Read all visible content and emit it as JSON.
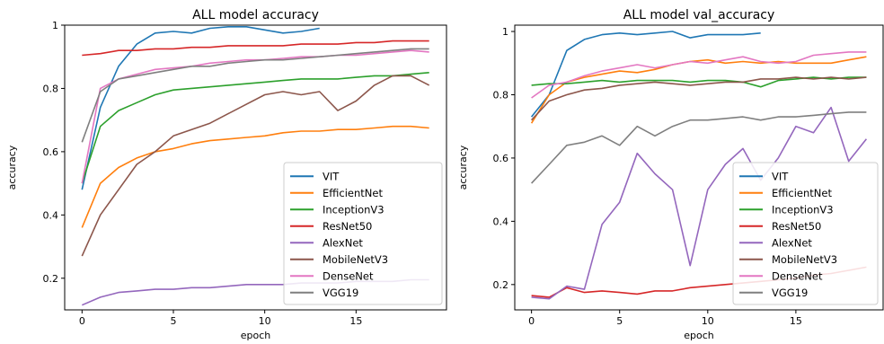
{
  "chart_data": [
    {
      "type": "line",
      "title": "ALL model accuracy",
      "xlabel": "epoch",
      "ylabel": "accuracy",
      "xlim": [
        -0.95,
        19.95
      ],
      "ylim": [
        0.1,
        1.0
      ],
      "xticks": [
        0,
        5,
        10,
        15
      ],
      "yticks": [
        0.2,
        0.4,
        0.6,
        0.8,
        1.0
      ],
      "legend_position": "lower right",
      "series": [
        {
          "name": "VIT",
          "color": "#1f77b4",
          "x": [
            0,
            1,
            2,
            3,
            4,
            5,
            6,
            7,
            8,
            9,
            10,
            11,
            12,
            13
          ],
          "values": [
            0.48,
            0.74,
            0.87,
            0.94,
            0.975,
            0.98,
            0.975,
            0.99,
            0.995,
            0.995,
            0.985,
            0.975,
            0.98,
            0.99
          ]
        },
        {
          "name": "EfficientNet",
          "color": "#ff7f0e",
          "x": [
            0,
            1,
            2,
            3,
            4,
            5,
            6,
            7,
            8,
            9,
            10,
            11,
            12,
            13,
            14,
            15,
            16,
            17,
            18,
            19
          ],
          "values": [
            0.36,
            0.5,
            0.55,
            0.58,
            0.6,
            0.61,
            0.625,
            0.635,
            0.64,
            0.645,
            0.65,
            0.66,
            0.665,
            0.665,
            0.67,
            0.67,
            0.675,
            0.68,
            0.68,
            0.675
          ]
        },
        {
          "name": "InceptionV3",
          "color": "#2ca02c",
          "x": [
            0,
            1,
            2,
            3,
            4,
            5,
            6,
            7,
            8,
            9,
            10,
            11,
            12,
            13,
            14,
            15,
            16,
            17,
            18,
            19
          ],
          "values": [
            0.5,
            0.68,
            0.73,
            0.755,
            0.78,
            0.795,
            0.8,
            0.805,
            0.81,
            0.815,
            0.82,
            0.825,
            0.83,
            0.83,
            0.83,
            0.835,
            0.84,
            0.84,
            0.845,
            0.85
          ]
        },
        {
          "name": "ResNet50",
          "color": "#d62728",
          "x": [
            0,
            1,
            2,
            3,
            4,
            5,
            6,
            7,
            8,
            9,
            10,
            11,
            12,
            13,
            14,
            15,
            16,
            17,
            18,
            19
          ],
          "values": [
            0.905,
            0.91,
            0.92,
            0.92,
            0.925,
            0.925,
            0.93,
            0.93,
            0.935,
            0.935,
            0.935,
            0.935,
            0.94,
            0.94,
            0.94,
            0.945,
            0.945,
            0.95,
            0.95,
            0.95
          ]
        },
        {
          "name": "AlexNet",
          "color": "#9467bd",
          "x": [
            0,
            1,
            2,
            3,
            4,
            5,
            6,
            7,
            8,
            9,
            10,
            11,
            12,
            13,
            14,
            15,
            16,
            17,
            18,
            19
          ],
          "values": [
            0.115,
            0.14,
            0.155,
            0.16,
            0.165,
            0.165,
            0.17,
            0.17,
            0.175,
            0.18,
            0.18,
            0.18,
            0.185,
            0.185,
            0.185,
            0.19,
            0.19,
            0.19,
            0.195,
            0.195
          ]
        },
        {
          "name": "MobileNetV3",
          "color": "#8c564b",
          "x": [
            0,
            1,
            2,
            3,
            4,
            5,
            6,
            7,
            8,
            9,
            10,
            11,
            12,
            13,
            14,
            15,
            16,
            17,
            18,
            19
          ],
          "values": [
            0.27,
            0.4,
            0.48,
            0.56,
            0.6,
            0.65,
            0.67,
            0.69,
            0.72,
            0.75,
            0.78,
            0.79,
            0.78,
            0.79,
            0.73,
            0.76,
            0.81,
            0.84,
            0.84,
            0.81
          ]
        },
        {
          "name": "DenseNet",
          "color": "#e377c2",
          "x": [
            0,
            1,
            2,
            3,
            4,
            5,
            6,
            7,
            8,
            9,
            10,
            11,
            12,
            13,
            14,
            15,
            16,
            17,
            18,
            19
          ],
          "values": [
            0.5,
            0.8,
            0.83,
            0.845,
            0.86,
            0.865,
            0.87,
            0.88,
            0.885,
            0.89,
            0.89,
            0.895,
            0.9,
            0.9,
            0.905,
            0.905,
            0.91,
            0.915,
            0.92,
            0.915
          ]
        },
        {
          "name": "VGG19",
          "color": "#7f7f7f",
          "x": [
            0,
            1,
            2,
            3,
            4,
            5,
            6,
            7,
            8,
            9,
            10,
            11,
            12,
            13,
            14,
            15,
            16,
            17,
            18,
            19
          ],
          "values": [
            0.63,
            0.79,
            0.83,
            0.84,
            0.85,
            0.86,
            0.87,
            0.87,
            0.88,
            0.885,
            0.89,
            0.89,
            0.895,
            0.9,
            0.905,
            0.91,
            0.915,
            0.92,
            0.925,
            0.925
          ]
        }
      ]
    },
    {
      "type": "line",
      "title": "ALL model val_accuracy",
      "xlabel": "epoch",
      "ylabel": "accuracy",
      "xlim": [
        -0.95,
        19.95
      ],
      "ylim": [
        0.12,
        1.02
      ],
      "xticks": [
        0,
        5,
        10,
        15
      ],
      "yticks": [
        0.2,
        0.4,
        0.6,
        0.8,
        1.0
      ],
      "legend_position": "lower right",
      "series": [
        {
          "name": "VIT",
          "color": "#1f77b4",
          "x": [
            0,
            1,
            2,
            3,
            4,
            5,
            6,
            7,
            8,
            9,
            10,
            11,
            12,
            13
          ],
          "values": [
            0.73,
            0.8,
            0.94,
            0.975,
            0.99,
            0.995,
            0.99,
            0.995,
            1.0,
            0.98,
            0.99,
            0.99,
            0.99,
            0.995
          ]
        },
        {
          "name": "EfficientNet",
          "color": "#ff7f0e",
          "x": [
            0,
            1,
            2,
            3,
            4,
            5,
            6,
            7,
            8,
            9,
            10,
            11,
            12,
            13,
            14,
            15,
            16,
            17,
            18,
            19
          ],
          "values": [
            0.71,
            0.8,
            0.84,
            0.855,
            0.865,
            0.875,
            0.87,
            0.88,
            0.895,
            0.905,
            0.91,
            0.9,
            0.905,
            0.9,
            0.905,
            0.9,
            0.9,
            0.9,
            0.91,
            0.92
          ]
        },
        {
          "name": "InceptionV3",
          "color": "#2ca02c",
          "x": [
            0,
            1,
            2,
            3,
            4,
            5,
            6,
            7,
            8,
            9,
            10,
            11,
            12,
            13,
            14,
            15,
            16,
            17,
            18,
            19
          ],
          "values": [
            0.83,
            0.835,
            0.835,
            0.84,
            0.845,
            0.84,
            0.845,
            0.845,
            0.845,
            0.84,
            0.845,
            0.845,
            0.84,
            0.825,
            0.845,
            0.85,
            0.855,
            0.85,
            0.855,
            0.855
          ]
        },
        {
          "name": "ResNet50",
          "color": "#d62728",
          "x": [
            0,
            1,
            2,
            3,
            4,
            5,
            6,
            7,
            8,
            9,
            10,
            11,
            12,
            13,
            14,
            15,
            16,
            17,
            18,
            19
          ],
          "values": [
            0.165,
            0.16,
            0.19,
            0.175,
            0.18,
            0.175,
            0.17,
            0.18,
            0.18,
            0.19,
            0.195,
            0.2,
            0.205,
            0.21,
            0.215,
            0.22,
            0.23,
            0.235,
            0.245,
            0.255
          ]
        },
        {
          "name": "AlexNet",
          "color": "#9467bd",
          "x": [
            0,
            1,
            2,
            3,
            4,
            5,
            6,
            7,
            8,
            9,
            10,
            11,
            12,
            13,
            14,
            15,
            16,
            17,
            18,
            19
          ],
          "values": [
            0.16,
            0.155,
            0.195,
            0.185,
            0.39,
            0.46,
            0.615,
            0.55,
            0.5,
            0.26,
            0.5,
            0.58,
            0.63,
            0.53,
            0.6,
            0.7,
            0.68,
            0.76,
            0.59,
            0.66
          ]
        },
        {
          "name": "MobileNetV3",
          "color": "#8c564b",
          "x": [
            0,
            1,
            2,
            3,
            4,
            5,
            6,
            7,
            8,
            9,
            10,
            11,
            12,
            13,
            14,
            15,
            16,
            17,
            18,
            19
          ],
          "values": [
            0.72,
            0.78,
            0.8,
            0.815,
            0.82,
            0.83,
            0.835,
            0.84,
            0.835,
            0.83,
            0.835,
            0.84,
            0.84,
            0.85,
            0.85,
            0.855,
            0.85,
            0.855,
            0.85,
            0.855
          ]
        },
        {
          "name": "DenseNet",
          "color": "#e377c2",
          "x": [
            0,
            1,
            2,
            3,
            4,
            5,
            6,
            7,
            8,
            9,
            10,
            11,
            12,
            13,
            14,
            15,
            16,
            17,
            18,
            19
          ],
          "values": [
            0.79,
            0.83,
            0.84,
            0.86,
            0.875,
            0.885,
            0.895,
            0.885,
            0.895,
            0.905,
            0.9,
            0.91,
            0.92,
            0.905,
            0.9,
            0.905,
            0.925,
            0.93,
            0.935,
            0.935
          ]
        },
        {
          "name": "VGG19",
          "color": "#7f7f7f",
          "x": [
            0,
            1,
            2,
            3,
            4,
            5,
            6,
            7,
            8,
            9,
            10,
            11,
            12,
            13,
            14,
            15,
            16,
            17,
            18,
            19
          ],
          "values": [
            0.52,
            0.58,
            0.64,
            0.65,
            0.67,
            0.64,
            0.7,
            0.67,
            0.7,
            0.72,
            0.72,
            0.725,
            0.73,
            0.72,
            0.73,
            0.73,
            0.735,
            0.74,
            0.745,
            0.745
          ]
        }
      ]
    }
  ]
}
